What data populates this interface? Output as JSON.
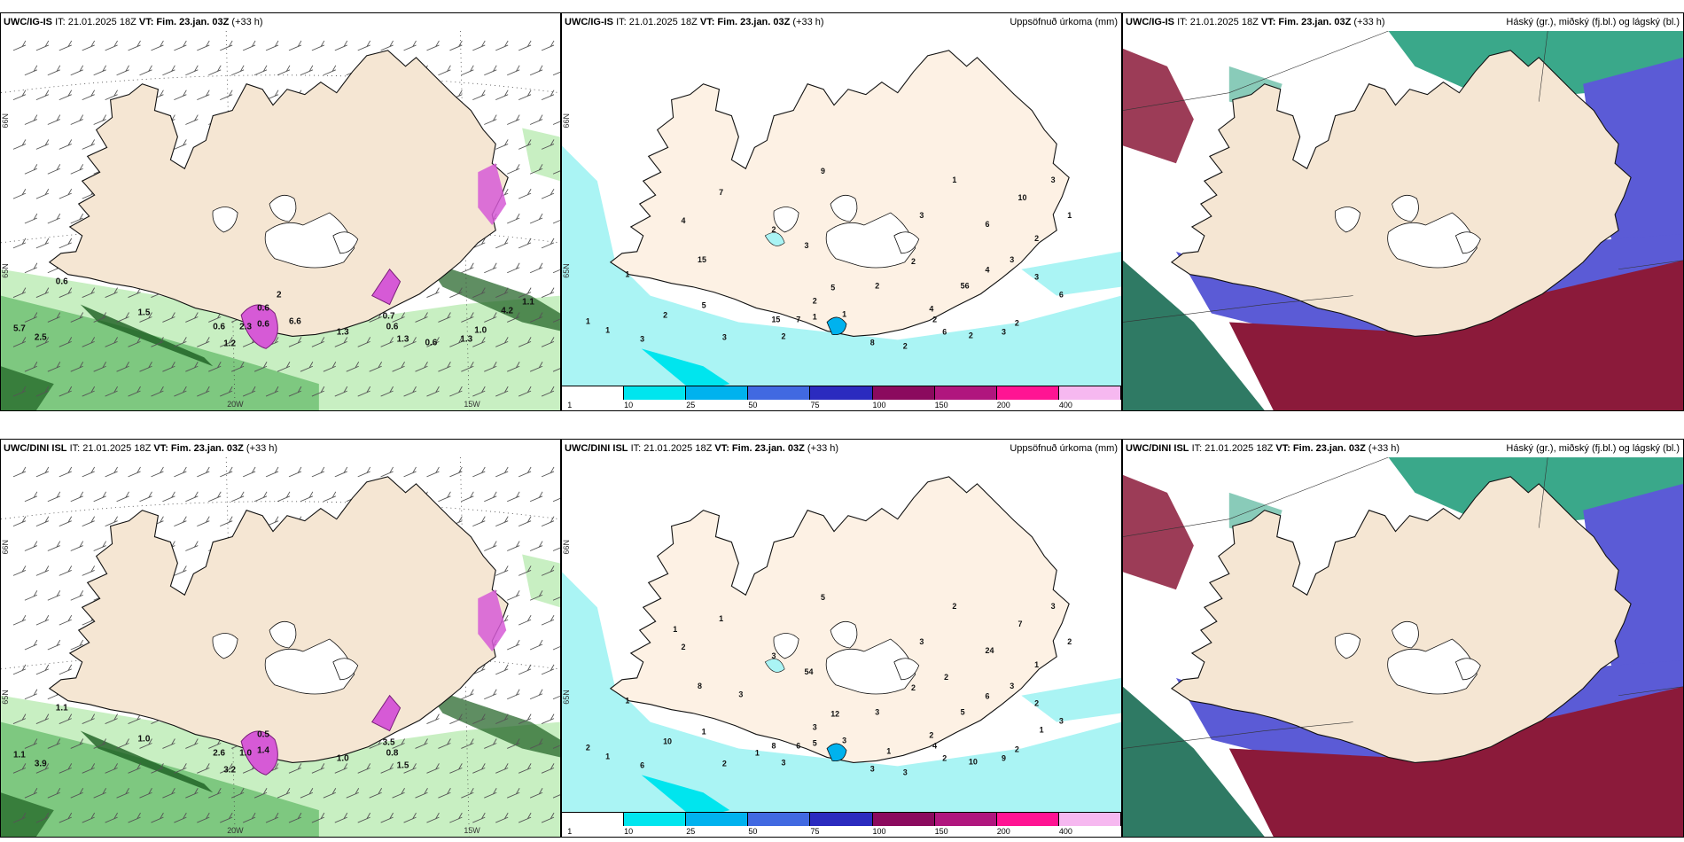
{
  "rows": [
    {
      "model": "UWC/IG-IS",
      "panels": [
        {
          "kind": "wind",
          "model": "UWC/IG-IS",
          "init_label": "IT: 21.01.2025 18Z",
          "valid_prefix": "VT:",
          "valid_time": "Fim. 23.jan. 03Z",
          "lead": "(+33 h)",
          "right_title": "",
          "axis_labels": [
            "66N",
            "65N",
            "20W",
            "15W"
          ],
          "values": [
            "0.6",
            "5.7",
            "2.5",
            "1.5",
            "1.2",
            "0.6",
            "2.3",
            "0.6",
            "0.6",
            "1.3",
            "0.7",
            "0.6",
            "1.3",
            "0.6",
            "1.3",
            "1.0",
            "4.2",
            "1.1",
            "6.6",
            "2"
          ]
        },
        {
          "kind": "precip",
          "model": "UWC/IG-IS",
          "init_label": "IT: 21.01.2025 18Z",
          "valid_prefix": "VT:",
          "valid_time": "Fim. 23.jan. 03Z",
          "lead": "(+33 h)",
          "right_title": "Uppsöfnuð úrkoma (mm)",
          "axis_labels": [
            "66N",
            "65N"
          ],
          "values": [
            "5",
            "4",
            "6",
            "8",
            "7",
            "6",
            "9",
            "2",
            "2",
            "1",
            "2",
            "4",
            "10",
            "15",
            "15",
            "6",
            "5",
            "56",
            "2",
            "3",
            "3",
            "7",
            "2",
            "2",
            "4",
            "3",
            "3",
            "1",
            "2",
            "3",
            "3",
            "3",
            "2",
            "1",
            "1",
            "1",
            "2",
            "3",
            "2",
            "2",
            "1",
            "1"
          ],
          "legend_ticks": [
            "1",
            "10",
            "25",
            "50",
            "75",
            "100",
            "150",
            "200",
            "400"
          ]
        },
        {
          "kind": "cloud",
          "model": "UWC/IG-IS",
          "init_label": "IT: 21.01.2025 18Z",
          "valid_prefix": "VT:",
          "valid_time": "Fim. 23.jan. 03Z",
          "lead": "(+33 h)",
          "right_title": "Háský (gr.), miðský (fj.bl.) og lágský (bl.)"
        }
      ]
    },
    {
      "model": "UWC/DINI ISL",
      "panels": [
        {
          "kind": "wind",
          "model": "UWC/DINI ISL",
          "init_label": "IT: 21.01.2025 18Z",
          "valid_prefix": "VT:",
          "valid_time": "Fim. 23.jan. 03Z",
          "lead": "(+33 h)",
          "right_title": "",
          "axis_labels": [
            "66N",
            "65N",
            "20W",
            "15W"
          ],
          "values": [
            "1.1",
            "1.1",
            "3.9",
            "1.0",
            "3.2",
            "2.6",
            "1.0",
            "0.5",
            "1.4",
            "1.0",
            "3.5",
            "0.8",
            "1.5"
          ]
        },
        {
          "kind": "precip",
          "model": "UWC/DINI ISL",
          "init_label": "IT: 21.01.2025 18Z",
          "valid_prefix": "VT:",
          "valid_time": "Fim. 23.jan. 03Z",
          "lead": "(+33 h)",
          "right_title": "Uppsöfnuð úrkoma (mm)",
          "axis_labels": [
            "66N",
            "65N"
          ],
          "values": [
            "1",
            "2",
            "3",
            "3",
            "1",
            "24",
            "5",
            "3",
            "4",
            "3",
            "3",
            "2",
            "7",
            "8",
            "8",
            "2",
            "12",
            "5",
            "3",
            "3",
            "3",
            "6",
            "10",
            "10",
            "6",
            "54",
            "2",
            "1",
            "3",
            "9",
            "6",
            "3",
            "3",
            "2",
            "2",
            "5",
            "2",
            "2",
            "1",
            "2",
            "2",
            "1",
            "1",
            "1",
            "1",
            "1",
            "2",
            "3"
          ],
          "legend_ticks": [
            "1",
            "10",
            "25",
            "50",
            "75",
            "100",
            "150",
            "200",
            "400"
          ]
        },
        {
          "kind": "cloud",
          "model": "UWC/DINI ISL",
          "init_label": "IT: 21.01.2025 18Z",
          "valid_prefix": "VT:",
          "valid_time": "Fim. 23.jan. 03Z",
          "lead": "(+33 h)",
          "right_title": "Háský (gr.), miðský (fj.bl.) og lágský (bl.)"
        }
      ]
    }
  ],
  "colors": {
    "land": "#f5e6d3",
    "land_light": "#fdf1e4",
    "wind_green_light": "#c8efc2",
    "wind_green": "#66bb6a",
    "wind_green_dark": "#1b5e20",
    "magenta": "#d65ad6",
    "precip_legend": [
      "#ffffff",
      "#00e5ee",
      "#00b2ee",
      "#4169e1",
      "#2b2bbf",
      "#8b0a5e",
      "#b0167e",
      "#ff1493",
      "#f6b8f0"
    ],
    "precip_light": "#aaf4f4",
    "cloud_high": "#3aa88a",
    "cloud_mid": "#5b5bd6",
    "cloud_low": "#8b1a3a",
    "cloud_sea": "#2f7a64"
  }
}
